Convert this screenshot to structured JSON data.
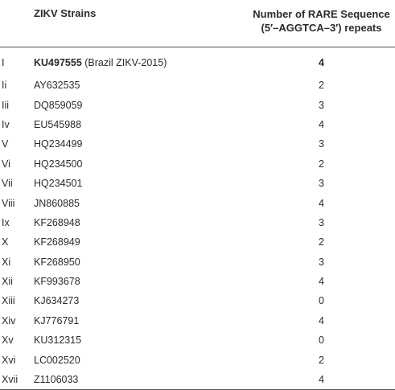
{
  "header": {
    "strain_label": "ZIKV Strains",
    "count_label_line1": "Number of RARE Sequence",
    "count_label_line2": "(5′–AGGTCA–3′) repeats"
  },
  "rows": [
    {
      "index": "I",
      "accession": "KU497555",
      "note": "(Brazil ZIKV-2015)",
      "repeats": "4"
    },
    {
      "index": "Ii",
      "accession": "AY632535",
      "note": "",
      "repeats": "2"
    },
    {
      "index": "Iii",
      "accession": "DQ859059",
      "note": "",
      "repeats": "3"
    },
    {
      "index": "Iv",
      "accession": "EU545988",
      "note": "",
      "repeats": "4"
    },
    {
      "index": "V",
      "accession": "HQ234499",
      "note": "",
      "repeats": "3"
    },
    {
      "index": "Vi",
      "accession": "HQ234500",
      "note": "",
      "repeats": "2"
    },
    {
      "index": "Vii",
      "accession": "HQ234501",
      "note": "",
      "repeats": "3"
    },
    {
      "index": "Viii",
      "accession": "JN860885",
      "note": "",
      "repeats": "4"
    },
    {
      "index": "Ix",
      "accession": "KF268948",
      "note": "",
      "repeats": "3"
    },
    {
      "index": "X",
      "accession": "KF268949",
      "note": "",
      "repeats": "2"
    },
    {
      "index": "Xi",
      "accession": "KF268950",
      "note": "",
      "repeats": "3"
    },
    {
      "index": "Xii",
      "accession": "KF993678",
      "note": "",
      "repeats": "4"
    },
    {
      "index": "Xiii",
      "accession": "KJ634273",
      "note": "",
      "repeats": "0"
    },
    {
      "index": "Xiv",
      "accession": "KJ776791",
      "note": "",
      "repeats": "4"
    },
    {
      "index": "Xv",
      "accession": "KU312315",
      "note": "",
      "repeats": "0"
    },
    {
      "index": "Xvi",
      "accession": "LC002520",
      "note": "",
      "repeats": "2"
    },
    {
      "index": "Xvii",
      "accession": "Z1106033",
      "note": "",
      "repeats": "4"
    }
  ]
}
